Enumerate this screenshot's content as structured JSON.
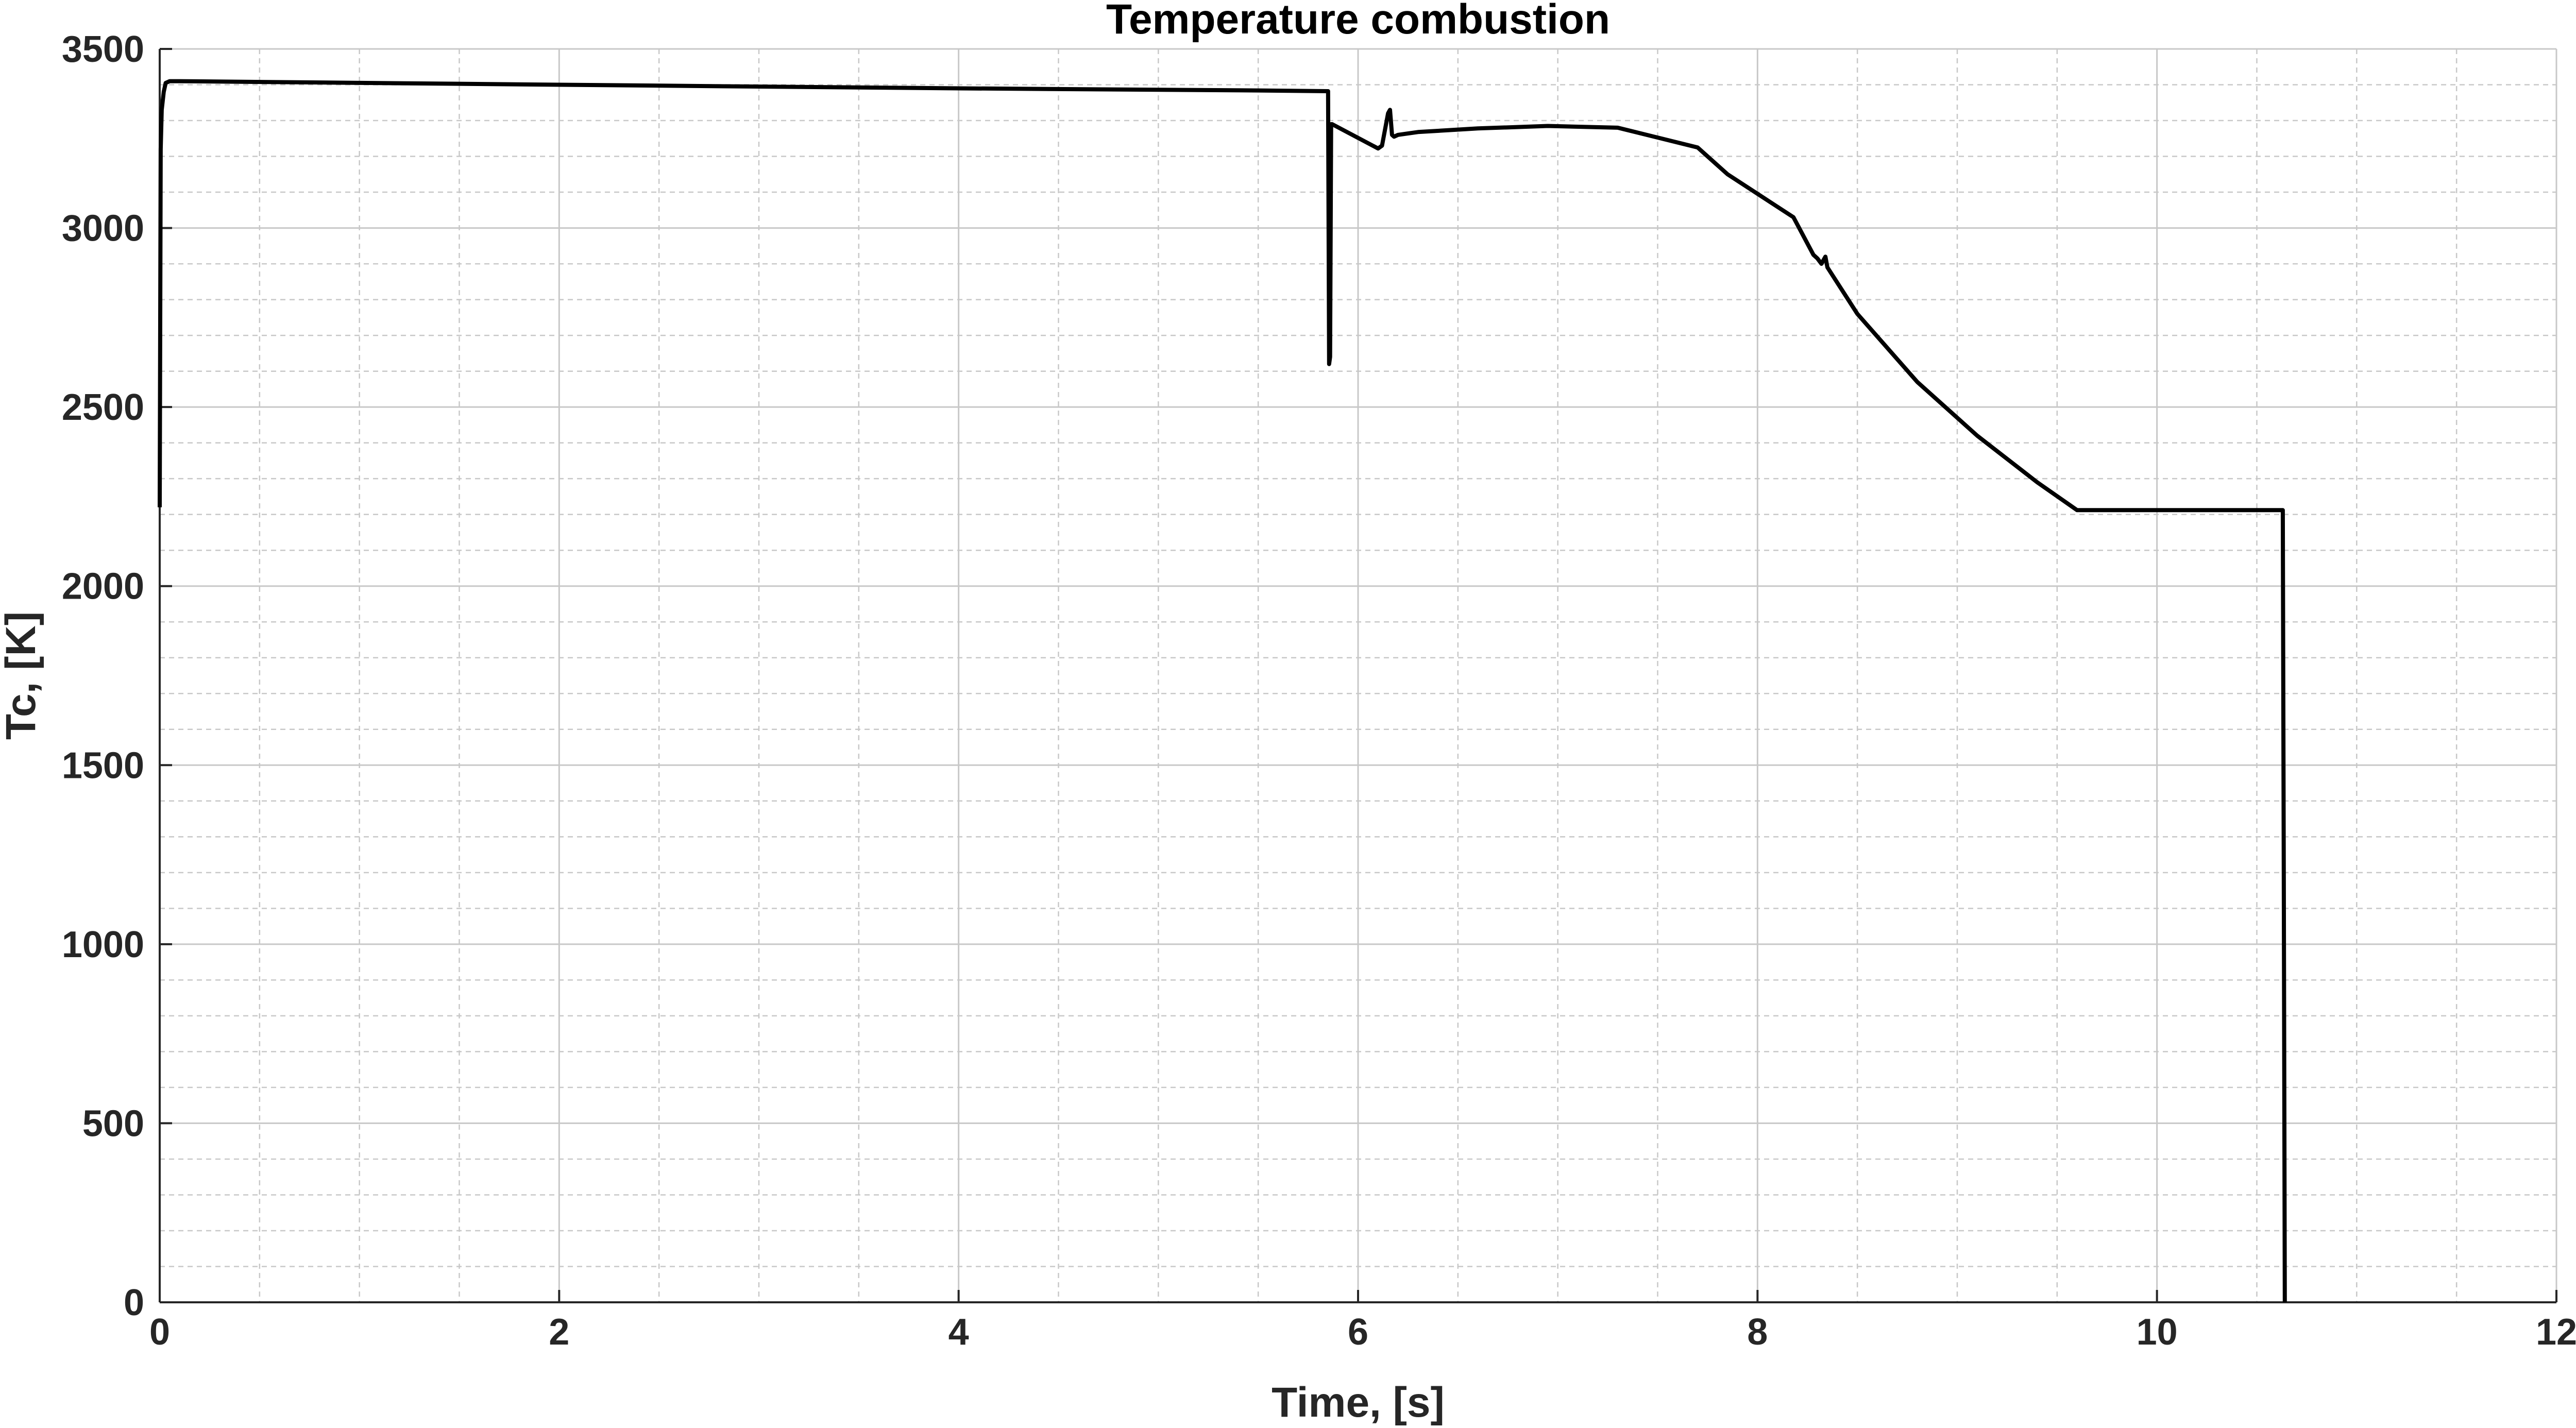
{
  "chart_data": {
    "type": "line",
    "title": "Temperature combustion",
    "xlabel": "Time, [s]",
    "ylabel": "Tc, [K]",
    "xlim": [
      0,
      12
    ],
    "ylim": [
      0,
      3500
    ],
    "xticks": [
      0,
      2,
      4,
      6,
      8,
      10,
      12
    ],
    "yticks": [
      0,
      500,
      1000,
      1500,
      2000,
      2500,
      3000,
      3500
    ],
    "xtick_labels": [
      "0",
      "2",
      "4",
      "6",
      "8",
      "10",
      "12"
    ],
    "ytick_labels": [
      "0",
      "500",
      "1000",
      "1500",
      "2000",
      "2500",
      "3000",
      "3500"
    ],
    "x_minor_step": 0.5,
    "y_minor_step": 100,
    "grid": true,
    "minor_grid": true,
    "line_color": "#000000",
    "series": [
      {
        "x": [
          0.0,
          0.005,
          0.01,
          0.02,
          0.03,
          0.05,
          0.1,
          2.0,
          4.0,
          5.5,
          5.85,
          5.855,
          5.86,
          5.865,
          5.87,
          6.1,
          6.12,
          6.15,
          6.16,
          6.17,
          6.18,
          6.2,
          6.3,
          6.6,
          6.95,
          7.3,
          7.7,
          7.85,
          8.18,
          8.28,
          8.3,
          8.32,
          8.34,
          8.35,
          8.5,
          8.8,
          9.1,
          9.4,
          9.6,
          10.0,
          10.3,
          10.63,
          10.635,
          10.64
        ],
        "y": [
          2220,
          3220,
          3330,
          3380,
          3405,
          3410,
          3410,
          3400,
          3390,
          3384,
          3382,
          2620,
          2640,
          3290,
          3290,
          3222,
          3230,
          3320,
          3330,
          3260,
          3255,
          3260,
          3268,
          3278,
          3285,
          3280,
          3225,
          3150,
          3030,
          2925,
          2915,
          2900,
          2920,
          2890,
          2760,
          2570,
          2420,
          2290,
          2212,
          2212,
          2212,
          2212,
          1200,
          0
        ]
      }
    ]
  }
}
